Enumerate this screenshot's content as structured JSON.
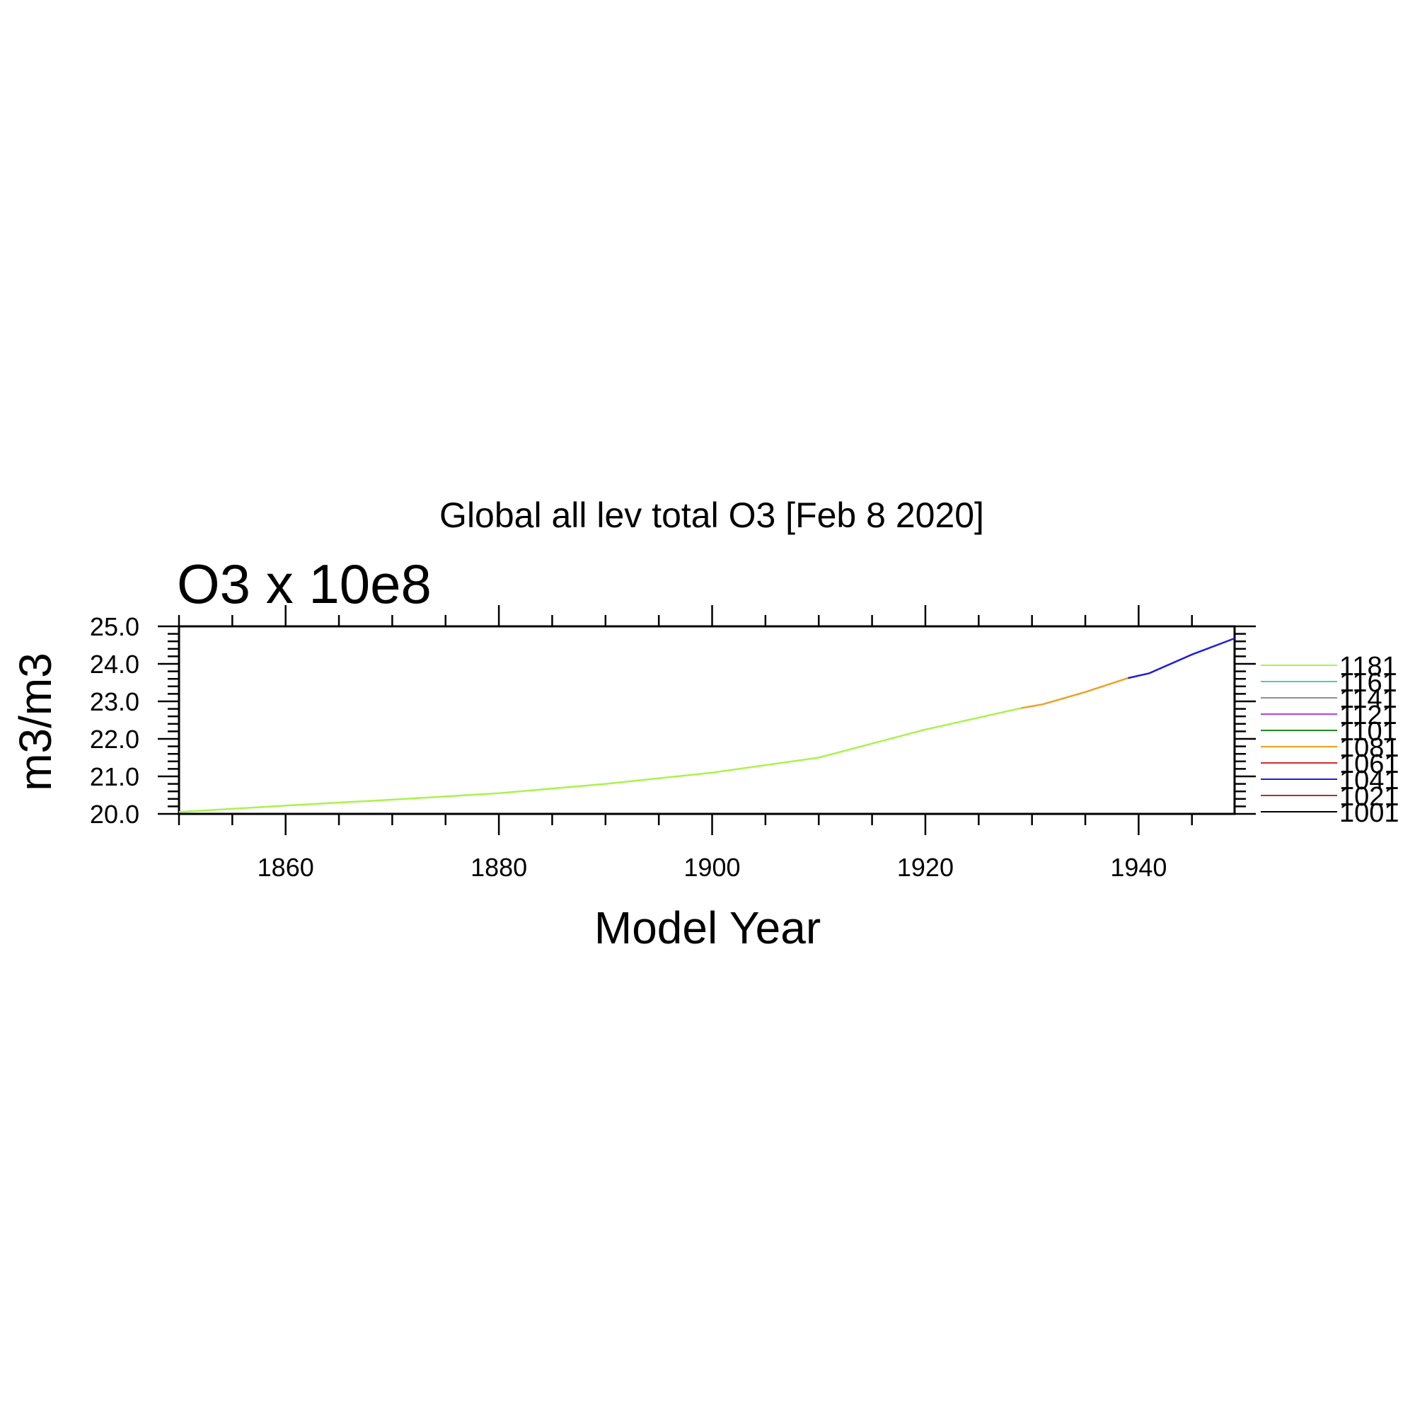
{
  "chart_data": {
    "type": "line",
    "title": "Global all lev total O3 [Feb  8 2020]",
    "subtitle": "O3 x 10e8",
    "xlabel": "Model Year",
    "ylabel": "m3/m3",
    "xlim": [
      1850,
      1949
    ],
    "ylim": [
      20.0,
      25.0
    ],
    "x_ticks": [
      1860,
      1880,
      1900,
      1920,
      1940
    ],
    "y_ticks": [
      "20.0",
      "21.0",
      "22.0",
      "23.0",
      "24.0",
      "25.0"
    ],
    "grid": false,
    "legend_position": "right",
    "series": [
      {
        "name": "1181",
        "color": "#a9f34b",
        "points": [
          [
            1850,
            20.05
          ],
          [
            1860,
            20.22
          ],
          [
            1870,
            20.38
          ],
          [
            1880,
            20.55
          ],
          [
            1890,
            20.8
          ],
          [
            1900,
            21.1
          ],
          [
            1910,
            21.5
          ],
          [
            1918,
            22.1
          ],
          [
            1920,
            22.25
          ],
          [
            1929,
            22.82
          ]
        ]
      },
      {
        "name": "1161",
        "color": "#55c8b3",
        "points": []
      },
      {
        "name": "1141",
        "color": "#8f8f8f",
        "points": []
      },
      {
        "name": "1121",
        "color": "#b443e6",
        "points": []
      },
      {
        "name": "1101",
        "color": "#1f8f1f",
        "points": []
      },
      {
        "name": "1081",
        "color": "#f0a021",
        "points": [
          [
            1929,
            22.82
          ],
          [
            1931,
            22.92
          ],
          [
            1935,
            23.25
          ],
          [
            1939,
            23.62
          ]
        ]
      },
      {
        "name": "1061",
        "color": "#d92828",
        "points": []
      },
      {
        "name": "1041",
        "color": "#1e1ee0",
        "points": [
          [
            1939,
            23.62
          ],
          [
            1941,
            23.75
          ],
          [
            1945,
            24.25
          ],
          [
            1949,
            24.68
          ]
        ]
      },
      {
        "name": "1021",
        "color": "#b03030",
        "points": []
      },
      {
        "name": "1001",
        "color": "#000000",
        "points": []
      }
    ]
  }
}
